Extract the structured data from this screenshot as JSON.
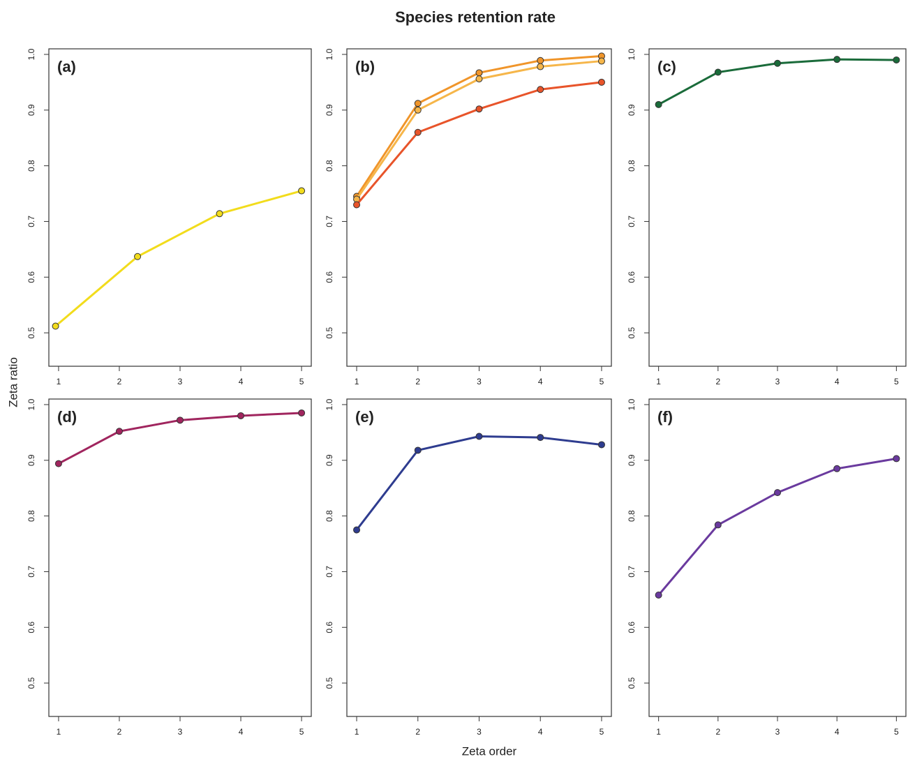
{
  "title": "Species retention rate",
  "xlabel": "Zeta order",
  "ylabel": "Zeta ratio",
  "chart_data": [
    {
      "type": "line",
      "title": "(a)",
      "x": [
        0.95,
        2.3,
        3.65,
        5
      ],
      "series": [
        {
          "color": "#f2dc1c",
          "values": [
            0.512,
            0.637,
            0.714,
            0.755
          ]
        }
      ],
      "xlim": [
        0.84,
        5.16
      ],
      "ylim": [
        0.44,
        1.01
      ],
      "xticks": [
        1,
        2,
        3,
        4,
        5
      ],
      "yticks": [
        0.5,
        0.6,
        0.7,
        0.8,
        0.9,
        {
          "value": 1,
          "label": "1.0"
        }
      ]
    },
    {
      "type": "line",
      "title": "(b)",
      "x": [
        1,
        2,
        3,
        4,
        5
      ],
      "series": [
        {
          "color": "#f0952a",
          "values": [
            0.745,
            0.912,
            0.967,
            0.989,
            0.997
          ]
        },
        {
          "color": "#f6b64a",
          "values": [
            0.74,
            0.9,
            0.956,
            0.978,
            0.988
          ]
        },
        {
          "color": "#e8542a",
          "values": [
            0.73,
            0.86,
            0.902,
            0.937,
            0.95
          ]
        }
      ],
      "xlim": [
        0.84,
        5.16
      ],
      "ylim": [
        0.44,
        1.01
      ],
      "xticks": [
        1,
        2,
        3,
        4,
        5
      ],
      "yticks": [
        0.5,
        0.6,
        0.7,
        0.8,
        0.9,
        {
          "value": 1,
          "label": "1.0"
        }
      ]
    },
    {
      "type": "line",
      "title": "(c)",
      "x": [
        1,
        2,
        3,
        4,
        5
      ],
      "series": [
        {
          "color": "#1a6b3a",
          "values": [
            0.91,
            0.968,
            0.984,
            0.991,
            0.99
          ]
        }
      ],
      "xlim": [
        0.84,
        5.16
      ],
      "ylim": [
        0.44,
        1.01
      ],
      "xticks": [
        1,
        2,
        3,
        4,
        5
      ],
      "yticks": [
        0.5,
        0.6,
        0.7,
        0.8,
        0.9,
        {
          "value": 1,
          "label": "1.0"
        }
      ]
    },
    {
      "type": "line",
      "title": "(d)",
      "x": [
        1,
        2,
        3,
        4,
        5
      ],
      "series": [
        {
          "color": "#a0255e",
          "values": [
            0.894,
            0.952,
            0.972,
            0.98,
            0.985
          ]
        }
      ],
      "xlim": [
        0.84,
        5.16
      ],
      "ylim": [
        0.44,
        1.01
      ],
      "xticks": [
        1,
        2,
        3,
        4,
        5
      ],
      "yticks": [
        0.5,
        0.6,
        0.7,
        0.8,
        0.9,
        {
          "value": 1,
          "label": "1.0"
        }
      ]
    },
    {
      "type": "line",
      "title": "(e)",
      "x": [
        1,
        2,
        3,
        4,
        5
      ],
      "series": [
        {
          "color": "#2e3c8f",
          "values": [
            0.775,
            0.918,
            0.943,
            0.941,
            0.928
          ]
        }
      ],
      "xlim": [
        0.84,
        5.16
      ],
      "ylim": [
        0.44,
        1.01
      ],
      "xticks": [
        1,
        2,
        3,
        4,
        5
      ],
      "yticks": [
        0.5,
        0.6,
        0.7,
        0.8,
        0.9,
        {
          "value": 1,
          "label": "1.0"
        }
      ]
    },
    {
      "type": "line",
      "title": "(f)",
      "x": [
        1,
        2,
        3,
        4,
        5
      ],
      "series": [
        {
          "color": "#6a3a9e",
          "values": [
            0.658,
            0.784,
            0.842,
            0.885,
            0.903
          ]
        }
      ],
      "xlim": [
        0.84,
        5.16
      ],
      "ylim": [
        0.44,
        1.01
      ],
      "xticks": [
        1,
        2,
        3,
        4,
        5
      ],
      "yticks": [
        0.5,
        0.6,
        0.7,
        0.8,
        0.9,
        {
          "value": 1,
          "label": "1.0"
        }
      ]
    }
  ]
}
